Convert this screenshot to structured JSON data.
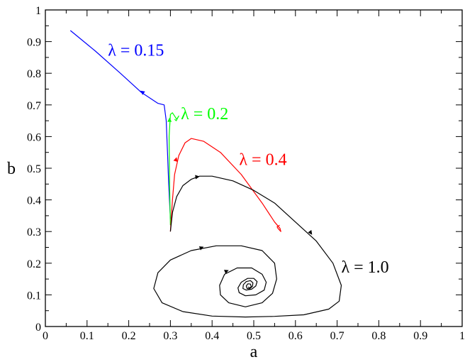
{
  "chart_data": {
    "type": "line",
    "title": "",
    "xlabel": "a",
    "ylabel": "b",
    "xlim": [
      0,
      1
    ],
    "ylim": [
      0,
      1
    ],
    "xticks": [
      "0",
      "0.1",
      "0.2",
      "0.3",
      "0.4",
      "0.5",
      "0.6",
      "0.7",
      "0.8",
      "0.9",
      "1"
    ],
    "yticks": [
      "0",
      "0.1",
      "0.2",
      "0.3",
      "0.4",
      "0.5",
      "0.6",
      "0.7",
      "0.8",
      "0.9",
      "1"
    ],
    "grid": false,
    "legend": "none",
    "series": [
      {
        "name": "λ = 0.15",
        "color": "#0000ff",
        "x": [
          0.06,
          0.12,
          0.18,
          0.23,
          0.27,
          0.285,
          0.29,
          0.293,
          0.296,
          0.3
        ],
        "y": [
          0.935,
          0.87,
          0.8,
          0.74,
          0.705,
          0.7,
          0.65,
          0.55,
          0.45,
          0.34
        ]
      },
      {
        "name": "λ = 0.2",
        "color": "#00ff00",
        "x": [
          0.3,
          0.298,
          0.297,
          0.3,
          0.305,
          0.31,
          0.315,
          0.32,
          0.314,
          0.31
        ],
        "y": [
          0.32,
          0.45,
          0.6,
          0.67,
          0.675,
          0.665,
          0.655,
          0.665,
          0.65,
          0.655
        ]
      },
      {
        "name": "λ = 0.4",
        "color": "#ff0000",
        "x": [
          0.3,
          0.305,
          0.31,
          0.32,
          0.335,
          0.35,
          0.38,
          0.42,
          0.47,
          0.52,
          0.55,
          0.563,
          0.565,
          0.558,
          0.556,
          0.562
        ],
        "y": [
          0.3,
          0.4,
          0.48,
          0.54,
          0.58,
          0.594,
          0.585,
          0.55,
          0.48,
          0.39,
          0.33,
          0.31,
          0.3,
          0.31,
          0.315,
          0.32
        ]
      },
      {
        "name": "λ = 1.0",
        "color": "#000000",
        "x": [
          0.3,
          0.305,
          0.315,
          0.33,
          0.35,
          0.37,
          0.4,
          0.45,
          0.5,
          0.55,
          0.6,
          0.65,
          0.69,
          0.71,
          0.705,
          0.68,
          0.62,
          0.55,
          0.48,
          0.4,
          0.33,
          0.28,
          0.26,
          0.27,
          0.3,
          0.35,
          0.41,
          0.47,
          0.52,
          0.55,
          0.555,
          0.545,
          0.52,
          0.48,
          0.44,
          0.42,
          0.418,
          0.43,
          0.46,
          0.495,
          0.52,
          0.53,
          0.525,
          0.505,
          0.48,
          0.465,
          0.462,
          0.47,
          0.485,
          0.5,
          0.508,
          0.505,
          0.495,
          0.482,
          0.474,
          0.475,
          0.482,
          0.492,
          0.498,
          0.497,
          0.49,
          0.484,
          0.482,
          0.486,
          0.492,
          0.494,
          0.49,
          0.486
        ],
        "y": [
          0.3,
          0.36,
          0.41,
          0.445,
          0.465,
          0.475,
          0.475,
          0.46,
          0.43,
          0.39,
          0.33,
          0.27,
          0.2,
          0.13,
          0.08,
          0.055,
          0.037,
          0.032,
          0.03,
          0.033,
          0.047,
          0.075,
          0.12,
          0.17,
          0.21,
          0.24,
          0.255,
          0.255,
          0.24,
          0.2,
          0.15,
          0.105,
          0.075,
          0.062,
          0.075,
          0.1,
          0.13,
          0.165,
          0.185,
          0.185,
          0.165,
          0.14,
          0.115,
          0.1,
          0.097,
          0.107,
          0.122,
          0.14,
          0.152,
          0.152,
          0.142,
          0.128,
          0.118,
          0.115,
          0.12,
          0.132,
          0.142,
          0.145,
          0.138,
          0.127,
          0.119,
          0.12,
          0.128,
          0.135,
          0.134,
          0.126,
          0.122,
          0.125
        ]
      }
    ],
    "series_labels": [
      {
        "text": "λ = 0.15",
        "color": "#0000ff",
        "x": 0.15,
        "y": 0.855
      },
      {
        "text": "λ = 0.2",
        "color": "#00ff00",
        "x": 0.325,
        "y": 0.655
      },
      {
        "text": "λ = 0.4",
        "color": "#ff0000",
        "x": 0.465,
        "y": 0.51
      },
      {
        "text": "λ = 1.0",
        "color": "#000000",
        "x": 0.71,
        "y": 0.17
      }
    ],
    "direction_arrows": [
      {
        "series": 0,
        "x": 0.228,
        "y": 0.745,
        "dx": -1,
        "dy": 0.75
      },
      {
        "series": 1,
        "x": 0.298,
        "y": 0.66,
        "dx": 0,
        "dy": 1
      },
      {
        "series": 2,
        "x": 0.315,
        "y": 0.535,
        "dx": 0.3,
        "dy": 1
      },
      {
        "series": 3,
        "x": 0.37,
        "y": 0.474,
        "dx": 1,
        "dy": 0.15
      },
      {
        "series": 3,
        "x": 0.64,
        "y": 0.29,
        "dx": 0.7,
        "dy": -1
      },
      {
        "series": 3,
        "x": 0.38,
        "y": 0.252,
        "dx": 1,
        "dy": 0.4
      },
      {
        "series": 3,
        "x": 0.44,
        "y": 0.178,
        "dx": 1,
        "dy": 0.4
      }
    ]
  }
}
